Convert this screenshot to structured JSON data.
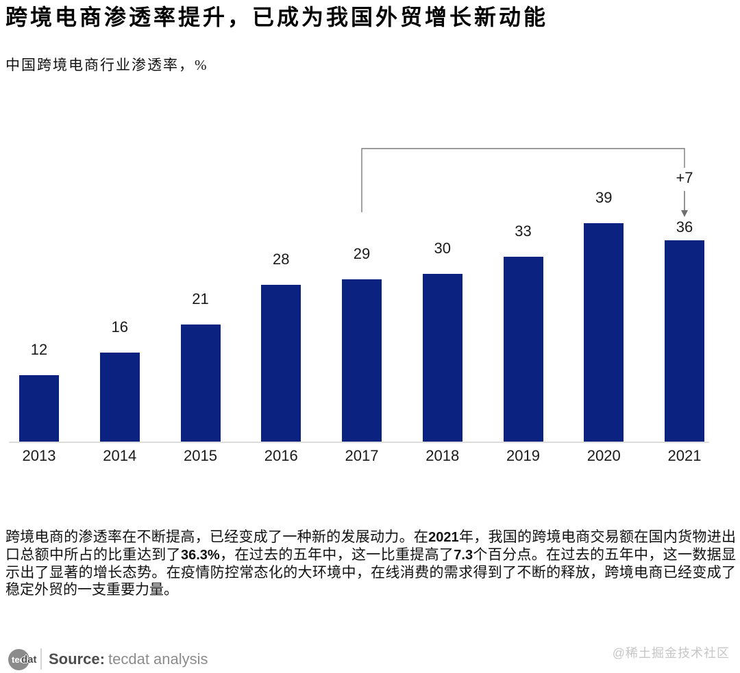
{
  "header": {
    "title": "跨境电商渗透率提升，已成为我国外贸增长新动能",
    "subtitle": "中国跨境电商行业渗透率，%"
  },
  "chart_data": {
    "type": "bar",
    "title": "中国跨境电商行业渗透率，%",
    "categories": [
      "2013",
      "2014",
      "2015",
      "2016",
      "2017",
      "2018",
      "2019",
      "2020",
      "2021"
    ],
    "values": [
      12,
      16,
      21,
      28,
      29,
      30,
      33,
      39,
      36
    ],
    "xlabel": "",
    "ylabel": "渗透率 %",
    "ylim": [
      0,
      45
    ],
    "grid": false,
    "legend": "none",
    "bar_color": "#0c2280",
    "value_labels_shown": true,
    "annotation": {
      "label": "+7",
      "from_category": "2017",
      "to_category": "2021",
      "line_color": "#7a7a7a"
    }
  },
  "commentary": {
    "parts": [
      {
        "text": "跨境电商的渗透率在不断提高，已经变成了一种新的发展动力。在",
        "bold": false
      },
      {
        "text": "2021",
        "bold": true
      },
      {
        "text": "年，我国的跨境电商交易额在国内货物进出口总额中所占的比重达到了",
        "bold": false
      },
      {
        "text": "36.3%",
        "bold": true
      },
      {
        "text": "，在过去的五年中，这一比重提高了",
        "bold": false
      },
      {
        "text": "7.3",
        "bold": true
      },
      {
        "text": "个百分点。在过去的五年中，这一数据显示出了显著的增长态势。在疫情防控常态化的大环境中，在线消费的需求得到了不断的释放，跨境电商已经变成了稳定外贸的一支重要力量。",
        "bold": false
      }
    ]
  },
  "footer": {
    "logo_tec": "tec",
    "logo_dat": "dat",
    "source_label": "Source:",
    "source_value": "tecdat analysis",
    "watermark": "@稀土掘金技术社区"
  }
}
